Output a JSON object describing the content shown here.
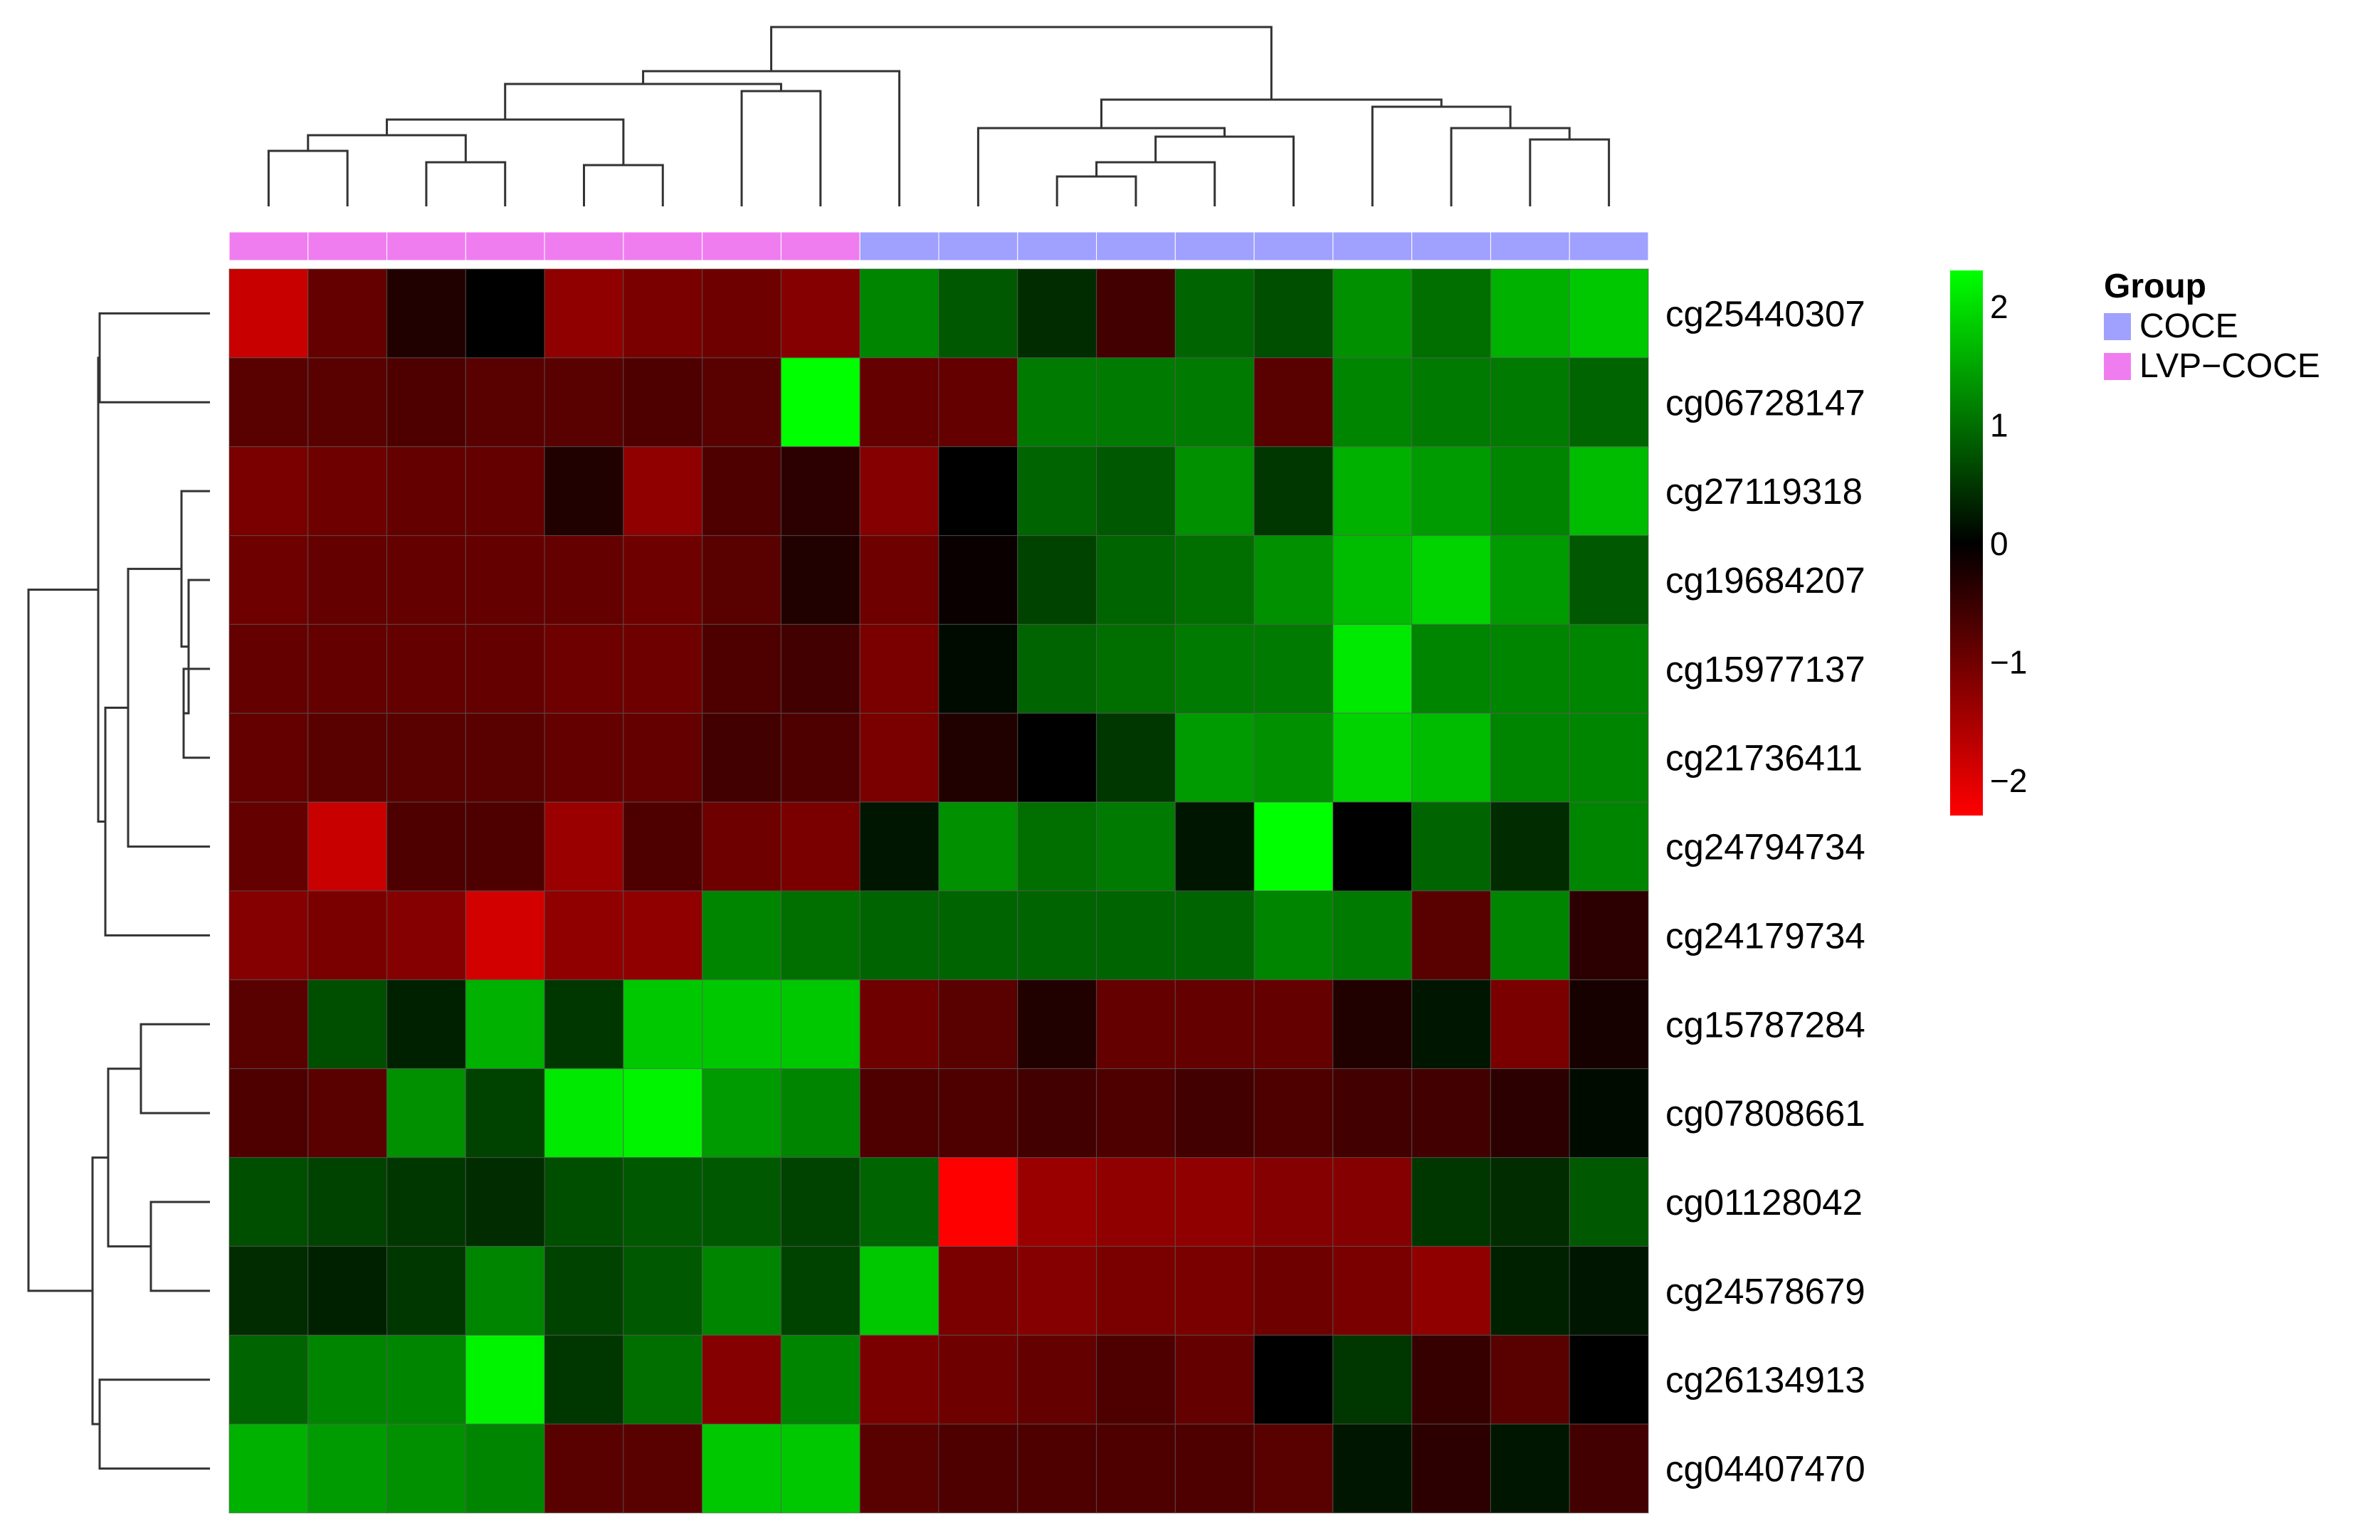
{
  "chart_data": {
    "type": "heatmap",
    "title": "",
    "xlabel": "",
    "ylabel": "",
    "rows": [
      "cg25440307",
      "cg06728147",
      "cg27119318",
      "cg19684207",
      "cg15977137",
      "cg21736411",
      "cg24794734",
      "cg24179734",
      "cg15787284",
      "cg07808661",
      "cg01128042",
      "cg24578679",
      "cg26134913",
      "cg04407470"
    ],
    "column_groups": [
      "LVP-COCE",
      "LVP-COCE",
      "LVP-COCE",
      "LVP-COCE",
      "LVP-COCE",
      "LVP-COCE",
      "LVP-COCE",
      "LVP-COCE",
      "COCE",
      "COCE",
      "COCE",
      "COCE",
      "COCE",
      "COCE",
      "COCE",
      "COCE",
      "COCE",
      "COCE"
    ],
    "values": [
      [
        -1.8,
        -0.9,
        -0.3,
        0.0,
        -1.3,
        -1.1,
        -1.0,
        -1.2,
        1.2,
        0.8,
        0.4,
        -0.6,
        0.9,
        0.7,
        1.3,
        1.0,
        1.6,
        1.8
      ],
      [
        -0.8,
        -0.8,
        -0.7,
        -0.8,
        -0.8,
        -0.7,
        -0.8,
        2.3,
        -0.9,
        -0.9,
        1.1,
        1.1,
        1.1,
        -0.8,
        1.2,
        1.1,
        1.1,
        0.9
      ],
      [
        -1.1,
        -1.0,
        -0.9,
        -0.9,
        -0.3,
        -1.3,
        -0.7,
        -0.4,
        -1.2,
        0.0,
        0.9,
        0.8,
        1.3,
        0.5,
        1.6,
        1.4,
        1.2,
        1.7
      ],
      [
        -1.0,
        -0.9,
        -0.9,
        -0.9,
        -0.9,
        -1.0,
        -0.8,
        -0.3,
        -1.0,
        -0.1,
        0.6,
        0.9,
        1.0,
        1.3,
        1.7,
        1.9,
        1.4,
        0.8
      ],
      [
        -0.9,
        -0.9,
        -0.9,
        -0.9,
        -1.0,
        -1.0,
        -0.7,
        -0.6,
        -1.1,
        0.1,
        0.9,
        1.0,
        1.1,
        1.1,
        2.1,
        1.2,
        1.2,
        1.2
      ],
      [
        -0.9,
        -0.8,
        -0.8,
        -0.8,
        -0.9,
        -0.9,
        -0.6,
        -0.7,
        -1.1,
        -0.3,
        0.0,
        0.5,
        1.4,
        1.3,
        1.9,
        1.7,
        1.2,
        1.2
      ],
      [
        -0.9,
        -1.8,
        -0.7,
        -0.7,
        -1.4,
        -0.7,
        -1.0,
        -1.1,
        0.2,
        1.3,
        1.0,
        1.1,
        0.2,
        2.3,
        0.0,
        0.9,
        0.4,
        1.2
      ],
      [
        -1.2,
        -1.1,
        -1.2,
        -1.9,
        -1.3,
        -1.3,
        1.2,
        1.0,
        0.9,
        0.9,
        0.9,
        0.9,
        0.9,
        1.2,
        1.1,
        -0.8,
        1.2,
        -0.4
      ],
      [
        -0.8,
        0.7,
        0.3,
        1.6,
        0.5,
        1.8,
        1.8,
        1.8,
        -1.0,
        -0.8,
        -0.3,
        -0.9,
        -0.9,
        -0.9,
        -0.3,
        0.2,
        -1.1,
        -0.2
      ],
      [
        -0.7,
        -0.8,
        1.3,
        0.6,
        2.1,
        2.2,
        1.4,
        1.2,
        -0.7,
        -0.7,
        -0.6,
        -0.7,
        -0.6,
        -0.7,
        -0.6,
        -0.6,
        -0.4,
        0.1
      ],
      [
        0.7,
        0.6,
        0.5,
        0.4,
        0.7,
        0.8,
        0.8,
        0.6,
        0.9,
        -2.3,
        -1.4,
        -1.3,
        -1.3,
        -1.2,
        -1.2,
        0.5,
        0.4,
        0.8
      ],
      [
        0.4,
        0.3,
        0.5,
        1.2,
        0.6,
        0.8,
        1.2,
        0.6,
        1.8,
        -1.1,
        -1.2,
        -1.1,
        -1.1,
        -1.0,
        -1.1,
        -1.3,
        0.3,
        0.2
      ],
      [
        0.9,
        1.2,
        1.2,
        2.2,
        0.5,
        1.0,
        -1.2,
        1.2,
        -1.1,
        -1.0,
        -0.9,
        -0.7,
        -0.9,
        0.0,
        0.5,
        -0.5,
        -0.8,
        0.0
      ],
      [
        1.6,
        1.4,
        1.3,
        1.2,
        -0.8,
        -0.8,
        1.8,
        1.8,
        -0.8,
        -0.7,
        -0.7,
        -0.7,
        -0.7,
        -0.8,
        0.2,
        -0.4,
        0.2,
        -0.6
      ]
    ],
    "color_scale": {
      "min": -2.3,
      "max": 2.3,
      "low_color": "#ff0000",
      "mid_color": "#000000",
      "high_color": "#00ff00"
    },
    "colorbar_ticks": [
      "2",
      "1",
      "0",
      "−1",
      "−2"
    ],
    "colorbar_tick_values": [
      2,
      1,
      0,
      -1,
      -2
    ],
    "legend": {
      "title": "Group",
      "entries": [
        {
          "label": "COCE",
          "color": "#a0a0ff"
        },
        {
          "label": "LVP−COCE",
          "color": "#f07df0"
        }
      ]
    },
    "group_colors": {
      "COCE": "#a0a0ff",
      "LVP-COCE": "#f07df0"
    },
    "grid": true,
    "legend_placement": "right"
  }
}
